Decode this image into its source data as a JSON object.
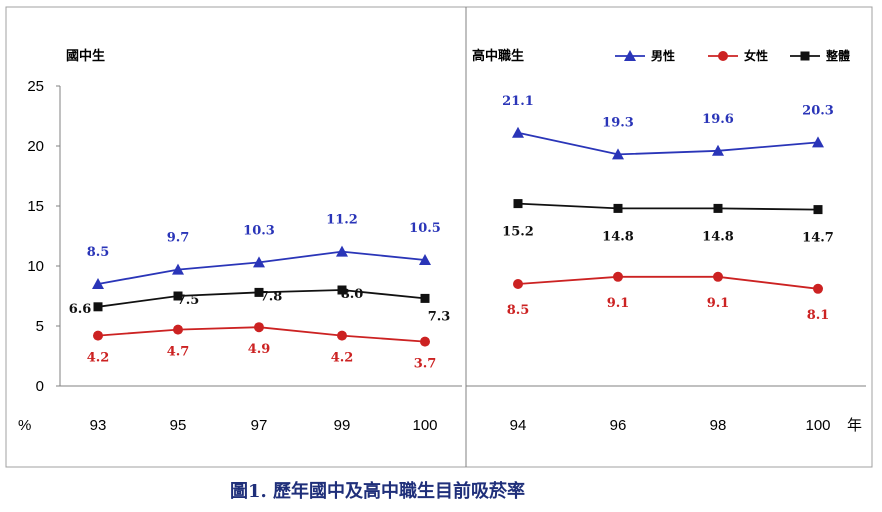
{
  "caption": "圖1. 歷年國中及高中職生目前吸菸率",
  "colors": {
    "male": "#2a35b8",
    "female": "#cc2222",
    "total": "#111111"
  },
  "legend": [
    {
      "name": "男性",
      "color": "#2a35b8",
      "marker": "triangle"
    },
    {
      "name": "女性",
      "color": "#cc2222",
      "marker": "circle"
    },
    {
      "name": "整體",
      "color": "#111111",
      "marker": "square"
    }
  ],
  "chart_data": [
    {
      "type": "line",
      "title": "國中生",
      "ylabel": "%",
      "xlabel": "",
      "x": [
        "93",
        "95",
        "97",
        "99",
        "100"
      ],
      "ylim": [
        0,
        25
      ],
      "yticks": [
        "0",
        "5",
        "10",
        "15",
        "20",
        "25"
      ],
      "grid": false,
      "legend": "none",
      "series": [
        {
          "name": "男性",
          "values": [
            8.5,
            9.7,
            10.3,
            11.2,
            10.5
          ],
          "labels": [
            "8.5",
            "9.7",
            "10.3",
            "11.2",
            "10.5"
          ]
        },
        {
          "name": "女性",
          "values": [
            4.2,
            4.7,
            4.9,
            4.2,
            3.7
          ],
          "labels": [
            "4.2",
            "4.7",
            "4.9",
            "4.2",
            "3.7"
          ]
        },
        {
          "name": "整體",
          "values": [
            6.6,
            7.5,
            7.8,
            8.0,
            7.3
          ],
          "labels": [
            "6.6",
            "7.5",
            "7.8",
            "8.0",
            "7.3"
          ]
        }
      ]
    },
    {
      "type": "line",
      "title": "高中職生",
      "ylabel": "",
      "xlabel": "年",
      "x": [
        "94",
        "96",
        "98",
        "100"
      ],
      "ylim": [
        0,
        25
      ],
      "grid": false,
      "legend": "top-right",
      "series": [
        {
          "name": "男性",
          "values": [
            21.1,
            19.3,
            19.6,
            20.3
          ],
          "labels": [
            "21.1",
            "19.3",
            "19.6",
            "20.3"
          ]
        },
        {
          "name": "女性",
          "values": [
            8.5,
            9.1,
            9.1,
            8.1
          ],
          "labels": [
            "8.5",
            "9.1",
            "9.1",
            "8.1"
          ]
        },
        {
          "name": "整體",
          "values": [
            15.2,
            14.8,
            14.8,
            14.7
          ],
          "labels": [
            "15.2",
            "14.8",
            "14.8",
            "14.7"
          ]
        }
      ]
    }
  ]
}
